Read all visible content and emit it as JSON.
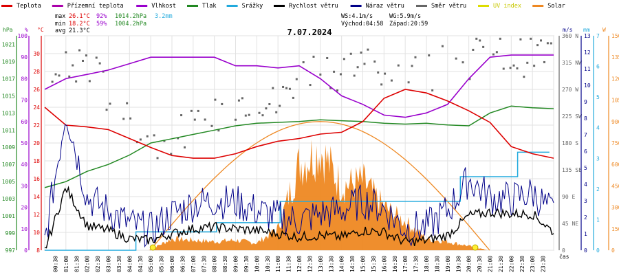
{
  "legend": [
    {
      "label": "Teplota",
      "color": "#dd0000",
      "dim": false
    },
    {
      "label": "Přízemní teplota",
      "color": "#aa00aa",
      "dim": false
    },
    {
      "label": "Vlhkost",
      "color": "#9900cc",
      "dim": false
    },
    {
      "label": "Tlak",
      "color": "#228822",
      "dim": false
    },
    {
      "label": "Srážky",
      "color": "#22aadd",
      "dim": false
    },
    {
      "label": "Rychlost větru",
      "color": "#000000",
      "dim": false
    },
    {
      "label": "Náraz větru",
      "color": "#000088",
      "dim": false
    },
    {
      "label": "Směr větru",
      "color": "#666666",
      "dim": false
    },
    {
      "label": "UV index",
      "color": "#dddd00",
      "dim": true
    },
    {
      "label": "Solar",
      "color": "#ee8822",
      "dim": false
    }
  ],
  "stats": {
    "max_label": "max",
    "min_label": "min",
    "avg_label": "avg",
    "max_temp": "26.1°C",
    "max_hum": "92%",
    "max_press": "1014.2hPa",
    "max_rain": "3.2mm",
    "min_temp": "18.2°C",
    "min_hum": "59%",
    "min_press": "1004.2hPa",
    "avg_temp": "21.3°C",
    "ws": "WS:4.1m/s",
    "wg": "WG:5.9m/s",
    "sunrise": "Východ:04:58",
    "sunset": "Západ:20:59"
  },
  "date": "7.07.2024",
  "axis_units": {
    "hpa": "hPa",
    "pct": "%",
    "degc": "°C",
    "ms": "m/s",
    "mm": "mm",
    "w": "W"
  },
  "xaxis_label": "čas",
  "colors": {
    "temp": "#dd0000",
    "hum": "#9900cc",
    "press": "#228822",
    "rain": "#22aadd",
    "wind": "#000000",
    "gust": "#000088",
    "dir": "#666666",
    "uv": "#dddd00",
    "solar": "#ee8822"
  },
  "chart_data": {
    "type": "line",
    "title": "7.07.2024",
    "xlabel": "čas",
    "x_ticks": [
      "00:30",
      "01:00",
      "01:30",
      "02:00",
      "02:30",
      "03:00",
      "03:30",
      "04:00",
      "04:30",
      "05:00",
      "05:30",
      "06:00",
      "06:30",
      "07:00",
      "07:30",
      "08:00",
      "08:30",
      "09:00",
      "09:30",
      "10:00",
      "10:30",
      "11:00",
      "11:30",
      "12:00",
      "12:30",
      "13:00",
      "13:30",
      "14:00",
      "14:30",
      "15:00",
      "15:30",
      "16:00",
      "16:30",
      "17:00",
      "17:30",
      "18:00",
      "18:30",
      "19:00",
      "19:30",
      "20:00",
      "20:30",
      "21:00",
      "21:30",
      "22:00",
      "22:30",
      "23:00",
      "23:30"
    ],
    "axes": {
      "pressure": {
        "unit": "hPa",
        "ylim": [
          997,
          1022
        ],
        "ticks": [
          "997",
          "999",
          "1001",
          "1003",
          "1005",
          "1007",
          "1009",
          "1011",
          "1013",
          "1015",
          "1017",
          "1019",
          "1021"
        ]
      },
      "humidity": {
        "unit": "%",
        "ylim": [
          0,
          100
        ],
        "ticks": [
          "0",
          "10",
          "20",
          "30",
          "40",
          "50",
          "60",
          "70",
          "80",
          "90",
          "100"
        ]
      },
      "temperature": {
        "unit": "°C",
        "ylim": [
          8,
          32
        ],
        "ticks": [
          "8",
          "10",
          "12",
          "14",
          "16",
          "18",
          "20",
          "22",
          "24",
          "26",
          "28",
          "30"
        ]
      },
      "wind_dir": {
        "ylim": [
          0,
          360
        ],
        "ticks": [
          "360 N",
          "315 NW",
          "270 W",
          "225 SW",
          "180 S",
          "135 SE",
          "90 E",
          "45 NE",
          "0"
        ]
      },
      "wind_speed": {
        "unit": "m/s",
        "ylim": [
          0,
          13
        ],
        "ticks": [
          "0",
          "1",
          "2",
          "3",
          "4",
          "5",
          "6",
          "7",
          "8",
          "9",
          "10",
          "11",
          "12",
          "13"
        ]
      },
      "rain": {
        "unit": "mm",
        "ylim": [
          0,
          7
        ],
        "ticks": [
          "0",
          "1",
          "2",
          "3",
          "4",
          "5",
          "6",
          "7"
        ]
      },
      "solar": {
        "unit": "W",
        "ylim": [
          0,
          1500
        ],
        "ticks": [
          "0",
          "150",
          "300",
          "450",
          "600",
          "750",
          "900",
          "1050",
          "1200",
          "1350",
          "1500"
        ]
      }
    },
    "series": [
      {
        "name": "Teplota",
        "axis": "temperature",
        "x": [
          0,
          1,
          2,
          3,
          4,
          5,
          6,
          7,
          8,
          9,
          10,
          11,
          12,
          13,
          14,
          15,
          16,
          17,
          18,
          19,
          20,
          21,
          22,
          23,
          24
        ],
        "values": [
          24,
          22,
          21.8,
          21.5,
          20.5,
          19.5,
          18.6,
          18.3,
          18.3,
          18.8,
          19.6,
          20.2,
          20.5,
          21,
          21.2,
          22.4,
          25,
          26,
          25.6,
          24.7,
          23.6,
          22.3,
          19.6,
          18.8,
          18.3
        ]
      },
      {
        "name": "Vlhkost",
        "axis": "humidity",
        "x": [
          0,
          1,
          2,
          3,
          4,
          5,
          6,
          7,
          8,
          9,
          10,
          11,
          12,
          13,
          14,
          15,
          16,
          17,
          18,
          19,
          20,
          21,
          22,
          23,
          24
        ],
        "values": [
          75,
          80,
          82,
          84,
          87,
          90,
          90,
          90,
          90,
          86,
          86,
          85,
          86,
          80,
          72,
          68,
          63,
          62,
          64,
          68,
          80,
          90,
          91,
          91,
          91
        ]
      },
      {
        "name": "Tlak",
        "axis": "pressure",
        "x": [
          0,
          1,
          2,
          3,
          4,
          5,
          6,
          7,
          8,
          9,
          10,
          11,
          12,
          13,
          14,
          15,
          16,
          17,
          18,
          19,
          20,
          21,
          22,
          23,
          24
        ],
        "values": [
          1004.3,
          1005.0,
          1006.2,
          1007.0,
          1008.1,
          1009.5,
          1010.0,
          1010.5,
          1011.0,
          1011.5,
          1011.8,
          1011.9,
          1012.0,
          1012.2,
          1012.1,
          1012.0,
          1011.8,
          1011.7,
          1011.8,
          1011.6,
          1011.5,
          1013.0,
          1013.8,
          1013.6,
          1013.5
        ]
      },
      {
        "name": "Srážky",
        "axis": "rain",
        "x": [
          0,
          4.2,
          4.3,
          8,
          8.1,
          11,
          11.1,
          19.5,
          19.6,
          22.2,
          22.3,
          23.8
        ],
        "values": [
          0,
          0,
          0.6,
          0.6,
          0.9,
          0.9,
          1.6,
          1.6,
          2.4,
          2.4,
          3.2,
          3.2
        ]
      },
      {
        "name": "Rychlost větru",
        "axis": "wind_speed",
        "x": [
          0,
          1,
          2,
          3,
          4,
          5,
          6,
          7,
          8,
          9,
          10,
          11,
          12,
          13,
          14,
          15,
          16,
          17,
          18,
          19,
          20,
          21,
          22,
          23,
          24
        ],
        "values": [
          0,
          3.8,
          1.5,
          1.2,
          0.7,
          0.6,
          1,
          1.3,
          1.4,
          1.3,
          1.2,
          1,
          0.8,
          0.9,
          0.8,
          1.2,
          1.1,
          0.5,
          0.6,
          0.9,
          2.1,
          2.3,
          2.2,
          2.2,
          1.1
        ]
      },
      {
        "name": "Náraz větru",
        "axis": "wind_speed",
        "x": [
          0,
          1,
          2,
          3,
          4,
          5,
          6,
          7,
          8,
          9,
          10,
          11,
          12,
          13,
          14,
          15,
          16,
          17,
          18,
          19,
          20,
          21,
          22,
          23,
          24
        ],
        "values": [
          0.5,
          8.5,
          3.2,
          2.4,
          1.6,
          1.2,
          2.2,
          2.8,
          3,
          2.9,
          2.4,
          2,
          1.8,
          2.2,
          2.4,
          3,
          2.5,
          1.3,
          1.4,
          2.4,
          4.3,
          3.2,
          3.1,
          3.5,
          2.2
        ]
      },
      {
        "name": "Směr větru",
        "axis": "wind_dir",
        "x": [
          0,
          1,
          2,
          3,
          4,
          5,
          6,
          7,
          8,
          9,
          10,
          11,
          12,
          13,
          14,
          15,
          16,
          17,
          18,
          19,
          20,
          21,
          22,
          23,
          24
        ],
        "values": [
          260,
          300,
          320,
          260,
          220,
          180,
          190,
          200,
          220,
          250,
          260,
          240,
          300,
          310,
          300,
          320,
          305,
          300,
          300,
          310,
          320,
          330,
          320,
          330,
          330
        ]
      },
      {
        "name": "Solar",
        "axis": "solar",
        "x": [
          0,
          4.9,
          6,
          7,
          8,
          9,
          10,
          11,
          12,
          13,
          14,
          15,
          16,
          17,
          18,
          19,
          20,
          20.9,
          24
        ],
        "values": [
          0,
          0,
          80,
          70,
          60,
          70,
          50,
          150,
          600,
          700,
          450,
          480,
          300,
          200,
          80,
          60,
          30,
          0,
          0
        ]
      },
      {
        "name": "UV index",
        "axis": "solar",
        "x": [
          5.1,
          20.3
        ],
        "values": [
          0,
          0
        ]
      }
    ],
    "solar_theoretical_peak": 900
  }
}
